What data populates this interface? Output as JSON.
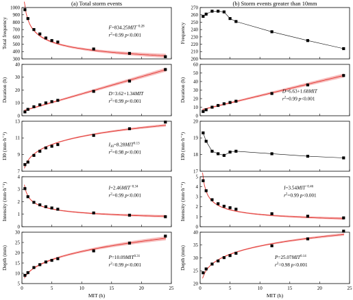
{
  "chart_data": [
    {
      "type": "scatter",
      "panel": "left-1",
      "title": "(a) Total storm events",
      "ylabel": "Total frequency",
      "xlabel": "",
      "ylim": [
        300,
        1000
      ],
      "yticks": [
        300,
        400,
        500,
        600,
        700,
        800,
        900,
        1000
      ],
      "xlim": [
        0,
        25
      ],
      "xticks": [
        0,
        5,
        10,
        15,
        20,
        25
      ],
      "show_xticklabels": false,
      "x": [
        0.5,
        1,
        2,
        3,
        4,
        5,
        6,
        12,
        18,
        24
      ],
      "y": [
        970,
        850,
        700,
        640,
        585,
        550,
        530,
        435,
        375,
        330
      ],
      "fit": {
        "kind": "power",
        "a": 834.25,
        "b": -0.28,
        "band": 0.03
      },
      "connect": false,
      "annotations": {
        "eq_a": "F",
        "eq_b": "=834.25",
        "eq_c": "MIT",
        "eq_d": "−0.28",
        "r2": "r",
        "r2_sup": "2",
        "r2_tail": "=0.99  ",
        "p": "p",
        "p_tail": "<0.001"
      }
    },
    {
      "type": "scatter",
      "panel": "right-1",
      "title": "(b) Storm events greater than 10mm",
      "ylabel": "Frequency",
      "xlabel": "",
      "ylim": [
        200,
        270
      ],
      "yticks": [
        200,
        210,
        220,
        230,
        240,
        250,
        260,
        270
      ],
      "xlim": [
        0,
        25
      ],
      "xticks": [
        0,
        5,
        10,
        15,
        20,
        25
      ],
      "show_xticklabels": false,
      "x": [
        0.5,
        1,
        2,
        3,
        4,
        5,
        6,
        12,
        18,
        24
      ],
      "y": [
        258,
        261,
        265,
        265,
        264,
        255,
        251,
        237,
        225,
        214
      ],
      "fit": null,
      "connect": true,
      "annotations": null
    },
    {
      "type": "scatter",
      "panel": "left-2",
      "ylabel": "Duration (h)",
      "xlabel": "",
      "ylim": [
        0,
        40
      ],
      "yticks": [
        0,
        10,
        20,
        30,
        40
      ],
      "xlim": [
        0,
        25
      ],
      "xticks": [
        0,
        5,
        10,
        15,
        20,
        25
      ],
      "show_xticklabels": false,
      "x": [
        0.5,
        1,
        2,
        3,
        4,
        5,
        6,
        12,
        18,
        24
      ],
      "y": [
        3,
        5,
        7,
        8.5,
        10,
        11,
        12,
        19,
        27,
        36
      ],
      "fit": {
        "kind": "linear",
        "a": 3.62,
        "b": 1.34,
        "band": 0.03
      },
      "connect": false,
      "annotations": {
        "eq_a": "D",
        "eq_b": "=3.62+1.34",
        "eq_c": "MIT",
        "eq_d": "",
        "r2": "r",
        "r2_sup": "2",
        "r2_tail": "=0.99  ",
        "p": "p",
        "p_tail": "<0.001"
      }
    },
    {
      "type": "scatter",
      "panel": "right-2",
      "ylabel": "Duration (h)",
      "xlabel": "",
      "ylim": [
        0,
        60
      ],
      "yticks": [
        0,
        10,
        20,
        30,
        40,
        50,
        60
      ],
      "xlim": [
        0,
        25
      ],
      "xticks": [
        0,
        5,
        10,
        15,
        20,
        25
      ],
      "show_xticklabels": false,
      "x": [
        0.5,
        1,
        2,
        3,
        4,
        5,
        6,
        12,
        18,
        24
      ],
      "y": [
        5,
        7,
        10,
        12,
        14,
        15.5,
        17,
        26,
        36,
        47
      ],
      "fit": {
        "kind": "linear",
        "a": 6.63,
        "b": 1.68,
        "band": 0.03
      },
      "connect": false,
      "annotations": {
        "eq_a": "D",
        "eq_b": "=6.63+1.68",
        "eq_c": "MIT",
        "eq_d": "",
        "r2": "r",
        "r2_sup": "2",
        "r2_tail": "=0.99  ",
        "p": "p",
        "p_tail": "<0.001"
      }
    },
    {
      "type": "scatter",
      "panel": "left-3",
      "ylabel": "I30 (mm·h⁻¹)",
      "xlabel": "",
      "ylim": [
        7,
        13
      ],
      "yticks": [
        7,
        9,
        11,
        13
      ],
      "xlim": [
        0,
        25
      ],
      "xticks": [
        0,
        5,
        10,
        15,
        20,
        25
      ],
      "show_xticklabels": false,
      "x": [
        0.5,
        1,
        2,
        3,
        4,
        5,
        6,
        12,
        18,
        24
      ],
      "y": [
        7.8,
        8.1,
        8.9,
        9.4,
        9.8,
        10.0,
        10.2,
        11.3,
        12.1,
        12.9
      ],
      "fit": {
        "kind": "power",
        "a": 8.28,
        "b": 0.13,
        "band": 0.02
      },
      "connect": false,
      "annotations": {
        "eq_a": "I",
        "eq_a_sub": "30",
        "eq_b": "=8.28",
        "eq_c": "MIT",
        "eq_d": "0.13",
        "r2": "r",
        "r2_sup": "2",
        "r2_tail": "=0.98  ",
        "p": "p",
        "p_tail": "<0.001"
      }
    },
    {
      "type": "scatter",
      "panel": "right-3",
      "ylabel": "I30 (mm·h⁻¹)",
      "xlabel": "",
      "ylim": [
        17,
        20
      ],
      "yticks": [
        17,
        18,
        19,
        20
      ],
      "xlim": [
        0,
        25
      ],
      "xticks": [
        0,
        5,
        10,
        15,
        20,
        25
      ],
      "show_xticklabels": false,
      "x": [
        0.5,
        1,
        2,
        3,
        4,
        5,
        6,
        12,
        18,
        24
      ],
      "y": [
        19.3,
        18.8,
        18.2,
        18.05,
        17.95,
        18.15,
        18.2,
        18.05,
        17.9,
        17.8
      ],
      "fit": null,
      "connect": true,
      "annotations": null
    },
    {
      "type": "scatter",
      "panel": "left-4",
      "ylabel": "Intensity (mm·h⁻¹)",
      "xlabel": "",
      "ylim": [
        0,
        4
      ],
      "yticks": [
        0,
        1,
        2,
        3,
        4
      ],
      "xlim": [
        0,
        25
      ],
      "xticks": [
        0,
        5,
        10,
        15,
        20,
        25
      ],
      "show_xticklabels": false,
      "x": [
        0.5,
        1,
        2,
        3,
        4,
        5,
        6,
        12,
        18,
        24
      ],
      "y": [
        3.05,
        2.4,
        1.95,
        1.75,
        1.6,
        1.5,
        1.4,
        1.1,
        0.92,
        0.8
      ],
      "fit": {
        "kind": "power",
        "a": 2.46,
        "b": -0.34,
        "band": 0.02
      },
      "connect": false,
      "annotations": {
        "eq_a": "I",
        "eq_b": "=2.46",
        "eq_c": "MIT",
        "eq_d": "−0.34",
        "r2": "r",
        "r2_sup": "2",
        "r2_tail": "=0.99  ",
        "p": "p",
        "p_tail": "<0.001"
      }
    },
    {
      "type": "scatter",
      "panel": "right-4",
      "ylabel": "Intensity (mm·h⁻¹)",
      "xlabel": "",
      "ylim": [
        0,
        5
      ],
      "yticks": [
        0,
        1,
        2,
        3,
        4,
        5
      ],
      "xlim": [
        0,
        25
      ],
      "xticks": [
        0,
        5,
        10,
        15,
        20,
        25
      ],
      "show_xticklabels": false,
      "x": [
        0.5,
        1,
        2,
        3,
        4,
        5,
        6,
        12,
        18,
        24
      ],
      "y": [
        4.6,
        3.6,
        2.7,
        2.3,
        2.05,
        1.9,
        1.75,
        1.3,
        1.05,
        0.88
      ],
      "fit": {
        "kind": "power",
        "a": 3.54,
        "b": -0.46,
        "band": 0.02
      },
      "connect": false,
      "annotations": {
        "eq_a": "I",
        "eq_b": "=3.54",
        "eq_c": "MIT",
        "eq_d": "−0.46",
        "r2": "r",
        "r2_sup": "2",
        "r2_tail": "=0.99  ",
        "p": "p",
        "p_tail": "<0.001"
      }
    },
    {
      "type": "scatter",
      "panel": "left-5",
      "ylabel": "Depth (mm)",
      "xlabel": "MIT (h)",
      "ylim": [
        5,
        30
      ],
      "yticks": [
        5,
        10,
        15,
        20,
        25,
        30
      ],
      "xlim": [
        0,
        25
      ],
      "xticks": [
        0,
        5,
        10,
        15,
        20,
        25
      ],
      "show_xticklabels": true,
      "x": [
        0.5,
        1,
        2,
        3,
        4,
        5,
        6,
        12,
        18,
        24
      ],
      "y": [
        9,
        10.3,
        12.8,
        14.2,
        15.5,
        16.3,
        17.1,
        20.9,
        24.7,
        28.1
      ],
      "fit": {
        "kind": "power",
        "a": 10.09,
        "b": 0.31,
        "band": 0.03
      },
      "connect": false,
      "annotations": {
        "eq_a": "P",
        "eq_b": "=10.09",
        "eq_c": "MIT",
        "eq_d": "0.31",
        "r2": "r",
        "r2_sup": "2",
        "r2_tail": "=0.99  ",
        "p": "p",
        "p_tail": "<0.001"
      }
    },
    {
      "type": "scatter",
      "panel": "right-5",
      "ylabel": "Depth (mm)",
      "xlabel": "MIT (h)",
      "ylim": [
        20,
        40
      ],
      "yticks": [
        20,
        25,
        30,
        35,
        40
      ],
      "xlim": [
        0,
        25
      ],
      "xticks": [
        0,
        5,
        10,
        15,
        20,
        25
      ],
      "show_xticklabels": true,
      "x": [
        0.5,
        1,
        2,
        3,
        4,
        5,
        6,
        12,
        18,
        24
      ],
      "y": [
        24.2,
        25.7,
        27.6,
        28.8,
        30.1,
        30.9,
        31.8,
        34.7,
        37.4,
        40.4
      ],
      "fit": {
        "kind": "power",
        "a": 25.07,
        "b": 0.14,
        "band": 0.02
      },
      "connect": false,
      "annotations": {
        "eq_a": "P",
        "eq_b": "=25.07",
        "eq_c": "MIT",
        "eq_d": "0.14",
        "r2": "r",
        "r2_sup": "2",
        "r2_tail": "=0.98  ",
        "p": "p",
        "p_tail": "<0.001"
      }
    }
  ]
}
